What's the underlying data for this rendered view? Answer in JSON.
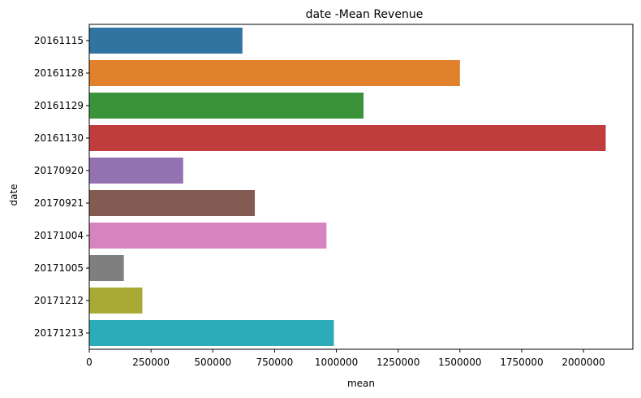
{
  "chart_data": {
    "type": "bar",
    "orientation": "horizontal",
    "title": "date -Mean Revenue",
    "xlabel": "mean",
    "ylabel": "date",
    "categories": [
      "20161115",
      "20161128",
      "20161129",
      "20161130",
      "20170920",
      "20170921",
      "20171004",
      "20171005",
      "20171212",
      "20171213"
    ],
    "values": [
      620000,
      1500000,
      1110000,
      2090000,
      380000,
      670000,
      960000,
      140000,
      215000,
      990000
    ],
    "colors": [
      "#3274a1",
      "#e1812c",
      "#3a923a",
      "#c03d3e",
      "#9372b2",
      "#845b53",
      "#d684bd",
      "#7f7f7f",
      "#a9aa35",
      "#2eabb8"
    ],
    "xlim": [
      0,
      2200000
    ],
    "xticks": [
      0,
      250000,
      500000,
      750000,
      1000000,
      1250000,
      1500000,
      1750000,
      2000000
    ],
    "xtick_labels": [
      "0",
      "250000",
      "500000",
      "750000",
      "1000000",
      "1250000",
      "1500000",
      "1750000",
      "2000000"
    ],
    "grid": false,
    "legend": "none"
  }
}
